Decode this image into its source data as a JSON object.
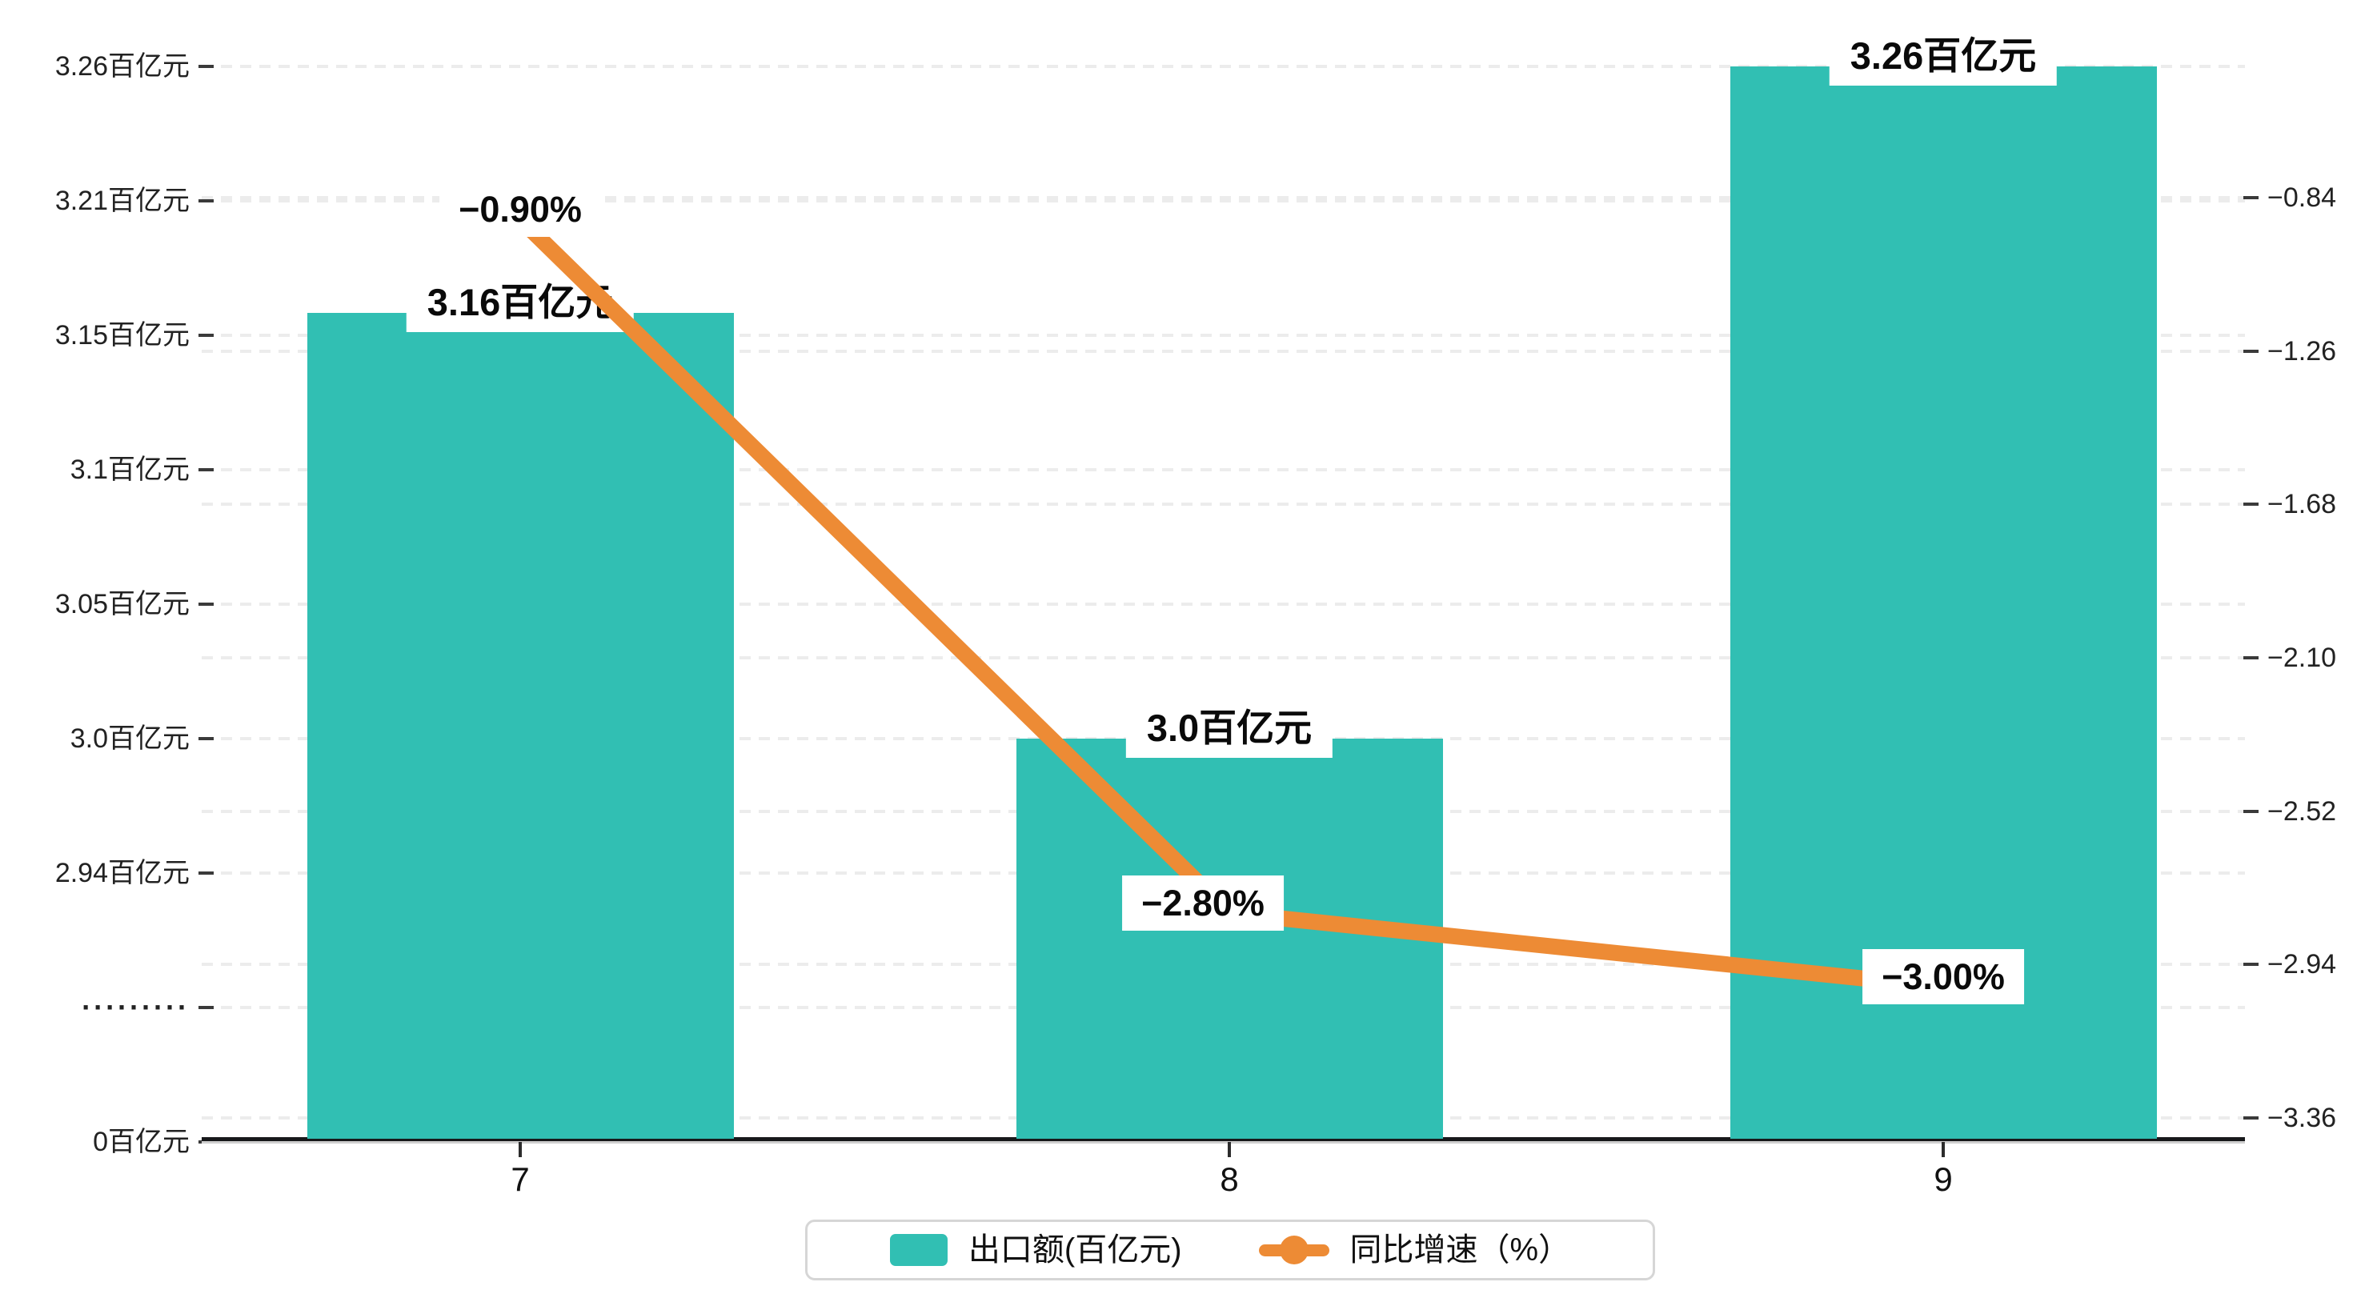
{
  "chart_data": {
    "type": "combo",
    "categories": [
      "7",
      "8",
      "9"
    ],
    "series": [
      {
        "name": "出口额(百亿元)",
        "type": "bar",
        "axis": "left",
        "color": "#31BFB3",
        "values": [
          3.16,
          3.0,
          3.26
        ],
        "data_labels": [
          "3.16百亿元",
          "3.0百亿元",
          "3.26百亿元"
        ]
      },
      {
        "name": "同比增速（%）",
        "type": "line",
        "axis": "right",
        "color": "#ED8B35",
        "values": [
          -0.9,
          -2.8,
          -3.0
        ],
        "data_labels": [
          "−0.90%",
          "−2.80%",
          "−3.00%"
        ]
      }
    ],
    "left_axis": {
      "tick_labels": [
        "3.26百亿元",
        "3.21百亿元",
        "3.15百亿元",
        "3.1百亿元",
        "3.05百亿元",
        "3.0百亿元",
        "2.94百亿元",
        "·········",
        "0百亿元"
      ],
      "tick_values": [
        3.26,
        3.21,
        3.15,
        3.1,
        3.05,
        3.0,
        2.94,
        null,
        0
      ],
      "axis_break": true
    },
    "right_axis": {
      "tick_labels": [
        "−0.84",
        "−1.26",
        "−1.68",
        "−2.10",
        "−2.52",
        "−2.94",
        "−3.36"
      ],
      "tick_values": [
        -0.84,
        -1.26,
        -1.68,
        -2.1,
        -2.52,
        -2.94,
        -3.36
      ]
    },
    "x_axis": {
      "tick_labels": [
        "7",
        "8",
        "9"
      ]
    },
    "grid": {
      "show": true,
      "style": "dashed",
      "color": "#ececec"
    },
    "legend": {
      "position": "bottom-center",
      "items": [
        {
          "label": "出口额(百亿元)",
          "icon": "bar",
          "color": "#31BFB3"
        },
        {
          "label": "同比增速（%）",
          "icon": "line-marker",
          "color": "#ED8B35"
        }
      ]
    }
  }
}
